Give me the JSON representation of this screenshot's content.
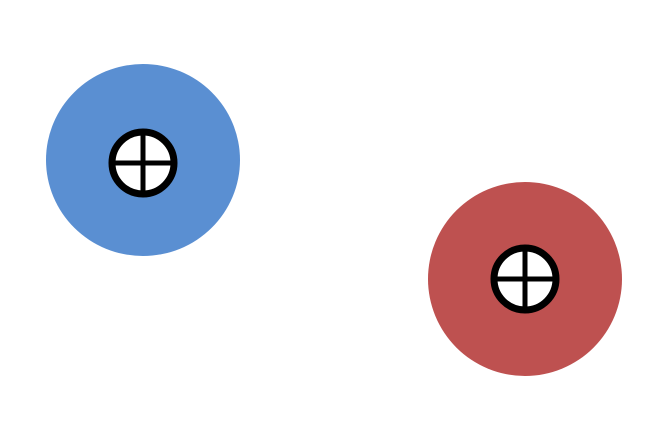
{
  "targets": [
    {
      "name": "blue-target",
      "color": "#5a8fd2",
      "icon": "crosshair-icon"
    },
    {
      "name": "red-target",
      "color": "#be5150",
      "icon": "crosshair-icon"
    }
  ],
  "crosshair": {
    "ring_color": "#000000",
    "fill_color": "#ffffff"
  }
}
